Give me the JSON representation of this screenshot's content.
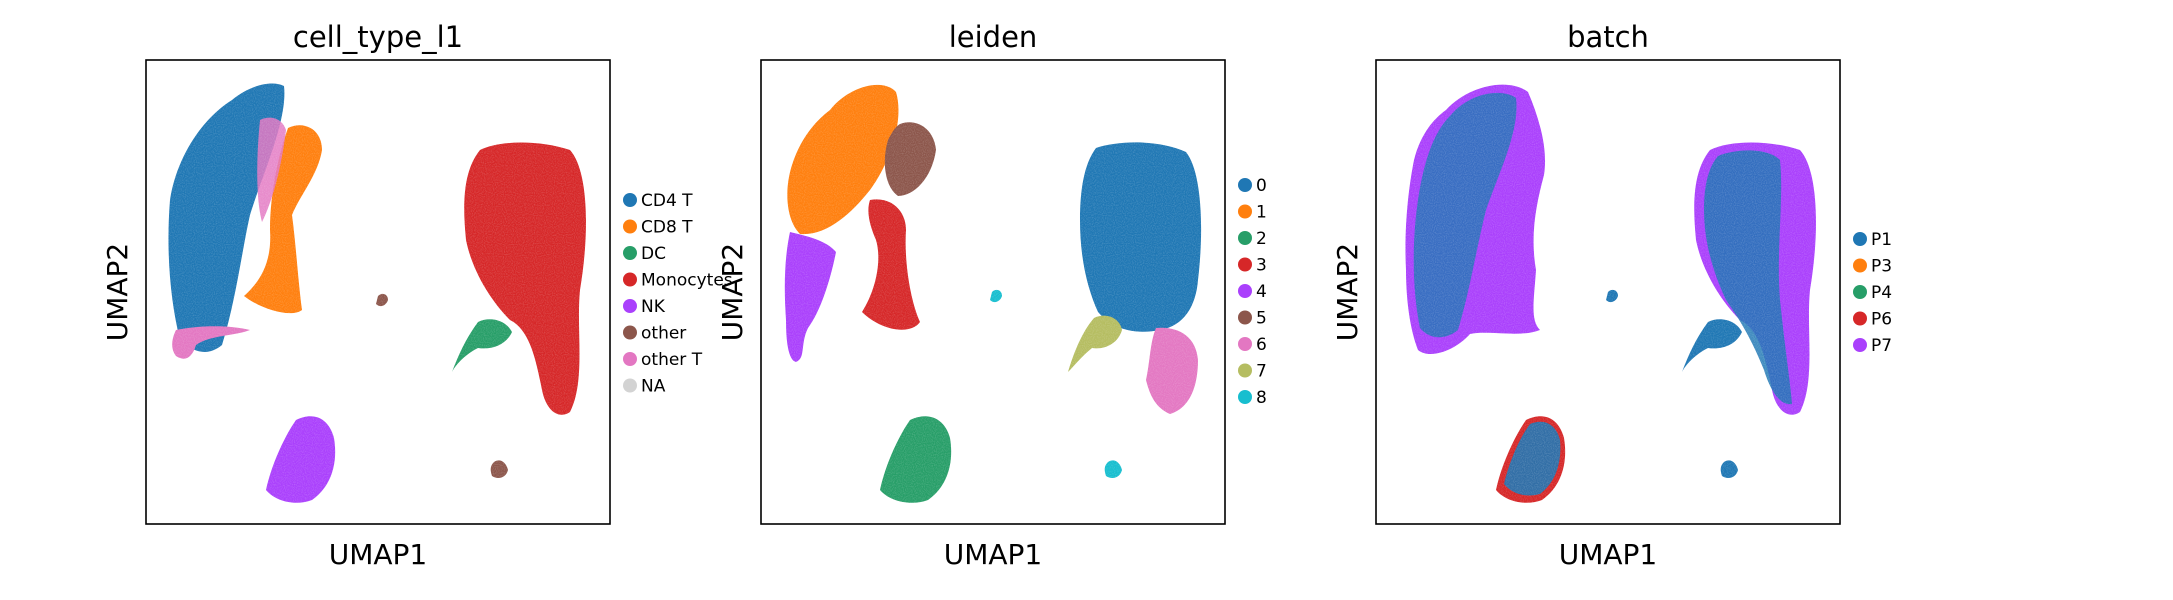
{
  "figure": {
    "panels": [
      {
        "title": "cell_type_l1",
        "xlabel": "UMAP1",
        "ylabel": "UMAP2",
        "legend": [
          {
            "label": "CD4 T",
            "color": "#1f77b4"
          },
          {
            "label": "CD8 T",
            "color": "#ff7f0e"
          },
          {
            "label": "DC",
            "color": "#279e68"
          },
          {
            "label": "Monocytes",
            "color": "#d62728"
          },
          {
            "label": "NK",
            "color": "#aa40fc"
          },
          {
            "label": "other",
            "color": "#8c564b"
          },
          {
            "label": "other T",
            "color": "#e377c2"
          },
          {
            "label": "NA",
            "color": "#d3d3d3"
          }
        ]
      },
      {
        "title": "leiden",
        "xlabel": "UMAP1",
        "ylabel": "UMAP2",
        "legend": [
          {
            "label": "0",
            "color": "#1f77b4"
          },
          {
            "label": "1",
            "color": "#ff7f0e"
          },
          {
            "label": "2",
            "color": "#279e68"
          },
          {
            "label": "3",
            "color": "#d62728"
          },
          {
            "label": "4",
            "color": "#aa40fc"
          },
          {
            "label": "5",
            "color": "#8c564b"
          },
          {
            "label": "6",
            "color": "#e377c2"
          },
          {
            "label": "7",
            "color": "#b5bd61"
          },
          {
            "label": "8",
            "color": "#17becf"
          }
        ]
      },
      {
        "title": "batch",
        "xlabel": "UMAP1",
        "ylabel": "UMAP2",
        "legend": [
          {
            "label": "P1",
            "color": "#1f77b4"
          },
          {
            "label": "P3",
            "color": "#ff7f0e"
          },
          {
            "label": "P4",
            "color": "#279e68"
          },
          {
            "label": "P6",
            "color": "#d62728"
          },
          {
            "label": "P7",
            "color": "#aa40fc"
          }
        ]
      }
    ]
  },
  "chart_data": [
    {
      "type": "scatter",
      "title": "cell_type_l1",
      "xlabel": "UMAP1",
      "ylabel": "UMAP2",
      "axis_ticks": false,
      "grid": false,
      "legend_position": "right",
      "series": [
        {
          "name": "CD4 T",
          "color": "#1f77b4"
        },
        {
          "name": "CD8 T",
          "color": "#ff7f0e"
        },
        {
          "name": "DC",
          "color": "#279e68"
        },
        {
          "name": "Monocytes",
          "color": "#d62728"
        },
        {
          "name": "NK",
          "color": "#aa40fc"
        },
        {
          "name": "other",
          "color": "#8c564b"
        },
        {
          "name": "other T",
          "color": "#e377c2"
        },
        {
          "name": "NA",
          "color": "#d3d3d3"
        }
      ]
    },
    {
      "type": "scatter",
      "title": "leiden",
      "xlabel": "UMAP1",
      "ylabel": "UMAP2",
      "axis_ticks": false,
      "grid": false,
      "legend_position": "right",
      "series": [
        {
          "name": "0",
          "color": "#1f77b4"
        },
        {
          "name": "1",
          "color": "#ff7f0e"
        },
        {
          "name": "2",
          "color": "#279e68"
        },
        {
          "name": "3",
          "color": "#d62728"
        },
        {
          "name": "4",
          "color": "#aa40fc"
        },
        {
          "name": "5",
          "color": "#8c564b"
        },
        {
          "name": "6",
          "color": "#e377c2"
        },
        {
          "name": "7",
          "color": "#b5bd61"
        },
        {
          "name": "8",
          "color": "#17becf"
        }
      ]
    },
    {
      "type": "scatter",
      "title": "batch",
      "xlabel": "UMAP1",
      "ylabel": "UMAP2",
      "axis_ticks": false,
      "grid": false,
      "legend_position": "right",
      "series": [
        {
          "name": "P1",
          "color": "#1f77b4"
        },
        {
          "name": "P3",
          "color": "#ff7f0e"
        },
        {
          "name": "P4",
          "color": "#279e68"
        },
        {
          "name": "P6",
          "color": "#d62728"
        },
        {
          "name": "P7",
          "color": "#aa40fc"
        }
      ]
    }
  ]
}
